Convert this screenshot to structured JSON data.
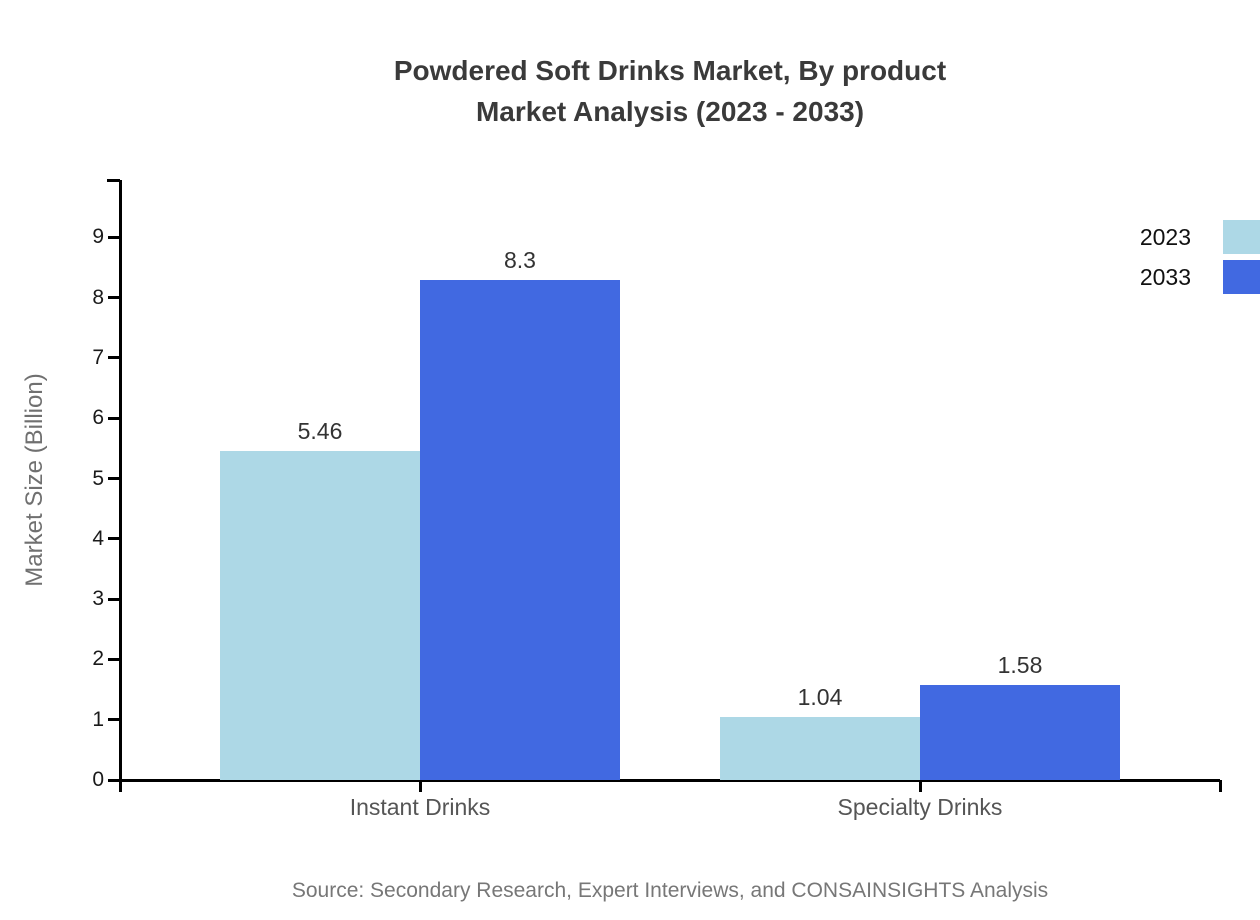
{
  "page": {
    "background_color": "#ffffff"
  },
  "chart_data": {
    "type": "bar",
    "title_lines": [
      "Powdered Soft Drinks Market, By product",
      "Market Analysis (2023 - 2033)"
    ],
    "categories": [
      "Instant Drinks",
      "Specialty Drinks"
    ],
    "series": [
      {
        "name": "2023",
        "color": "#ADD8E6",
        "values": [
          5.46,
          1.04
        ]
      },
      {
        "name": "2033",
        "color": "#4169E1",
        "values": [
          8.3,
          1.58
        ]
      }
    ],
    "value_labels": [
      [
        "5.46",
        "1.04"
      ],
      [
        "8.3",
        "1.58"
      ]
    ],
    "xlabel": "",
    "ylabel": "Market Size (Billion)",
    "yticks": [
      0,
      1,
      2,
      3,
      4,
      5,
      6,
      7,
      8,
      9
    ],
    "ylim": [
      0,
      9.95
    ],
    "grid": false,
    "legend_position": "top-right",
    "axis_color": "#000000",
    "title_color": "#3a3a3a",
    "value_label_color": "#333333",
    "category_label_color": "#555555",
    "tick_label_color": "#1a1a1a",
    "source": "Source: Secondary Research, Expert Interviews, and CONSAINSIGHTS Analysis"
  }
}
